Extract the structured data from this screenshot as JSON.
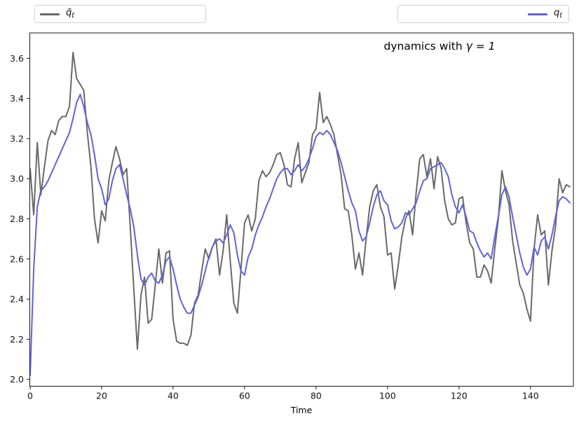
{
  "figure": {
    "title_prefix": "dynamics with",
    "title_math": "γ = 1"
  },
  "legend": {
    "left": {
      "label_base": "q̃",
      "label_sub": "t",
      "color": "#696969"
    },
    "right": {
      "label_base": "q",
      "label_sub": "t",
      "color": "#6161de"
    }
  },
  "axes": {
    "xlabel": "Time",
    "x_ticks": [
      0,
      20,
      40,
      60,
      80,
      100,
      120,
      140
    ],
    "y_ticks": [
      2.0,
      2.2,
      2.4,
      2.6,
      2.8,
      3.0,
      3.2,
      3.4,
      3.6
    ],
    "frame_color": "#1a1a1a",
    "tick_label_color": "#111111"
  },
  "chart_data": {
    "type": "line",
    "title": "dynamics with γ = 1",
    "xlabel": "Time",
    "ylabel": "",
    "x_start": 0,
    "x_step": 1,
    "xlim": [
      0,
      152
    ],
    "ylim": [
      1.965,
      3.727
    ],
    "grid": false,
    "legend_position": "two boxes above axes (upper-left and upper-right)",
    "series": [
      {
        "name": "q̃_t",
        "color": "#696969",
        "linewidth": 2,
        "values": [
          3.05,
          2.82,
          3.18,
          2.92,
          3.06,
          3.19,
          3.24,
          3.22,
          3.29,
          3.31,
          3.31,
          3.36,
          3.63,
          3.5,
          3.47,
          3.44,
          3.23,
          3.06,
          2.8,
          2.68,
          2.84,
          2.79,
          2.99,
          3.08,
          3.16,
          3.1,
          3.02,
          3.05,
          2.76,
          2.45,
          2.15,
          2.42,
          2.51,
          2.28,
          2.3,
          2.47,
          2.65,
          2.48,
          2.63,
          2.64,
          2.3,
          2.19,
          2.18,
          2.18,
          2.17,
          2.22,
          2.38,
          2.42,
          2.54,
          2.65,
          2.6,
          2.66,
          2.7,
          2.52,
          2.64,
          2.82,
          2.59,
          2.38,
          2.33,
          2.55,
          2.78,
          2.82,
          2.74,
          2.8,
          2.99,
          3.04,
          3.01,
          3.03,
          3.07,
          3.12,
          3.13,
          3.07,
          2.97,
          2.96,
          3.1,
          3.18,
          2.98,
          3.03,
          3.08,
          3.22,
          3.25,
          3.43,
          3.28,
          3.31,
          3.27,
          3.22,
          3.12,
          3.02,
          2.85,
          2.84,
          2.72,
          2.55,
          2.63,
          2.52,
          2.7,
          2.86,
          2.94,
          2.97,
          2.86,
          2.81,
          2.62,
          2.63,
          2.45,
          2.57,
          2.71,
          2.8,
          2.84,
          2.72,
          2.93,
          3.1,
          3.12,
          3.01,
          3.1,
          2.95,
          3.11,
          3.05,
          2.89,
          2.8,
          2.77,
          2.78,
          2.9,
          2.91,
          2.78,
          2.68,
          2.65,
          2.51,
          2.51,
          2.57,
          2.54,
          2.48,
          2.65,
          2.8,
          3.04,
          2.94,
          2.87,
          2.69,
          2.58,
          2.47,
          2.43,
          2.35,
          2.29,
          2.65,
          2.82,
          2.72,
          2.74,
          2.47,
          2.64,
          2.76,
          3.0,
          2.93,
          2.97,
          2.96
        ]
      },
      {
        "name": "q_t",
        "color": "#6161de",
        "linewidth": 2,
        "values": [
          2.02,
          2.55,
          2.86,
          2.94,
          2.96,
          2.99,
          3.03,
          3.07,
          3.11,
          3.15,
          3.19,
          3.23,
          3.3,
          3.38,
          3.42,
          3.36,
          3.28,
          3.22,
          3.12,
          3.0,
          2.95,
          2.87,
          2.9,
          2.99,
          3.05,
          3.07,
          3.0,
          2.92,
          2.85,
          2.76,
          2.62,
          2.5,
          2.47,
          2.51,
          2.53,
          2.49,
          2.48,
          2.52,
          2.59,
          2.61,
          2.55,
          2.47,
          2.4,
          2.36,
          2.33,
          2.33,
          2.37,
          2.41,
          2.47,
          2.54,
          2.61,
          2.66,
          2.69,
          2.7,
          2.68,
          2.72,
          2.77,
          2.73,
          2.62,
          2.54,
          2.52,
          2.61,
          2.65,
          2.72,
          2.77,
          2.81,
          2.86,
          2.9,
          2.95,
          3.0,
          3.03,
          3.05,
          3.05,
          3.02,
          3.04,
          3.07,
          3.04,
          3.06,
          3.1,
          3.15,
          3.21,
          3.23,
          3.22,
          3.24,
          3.22,
          3.18,
          3.14,
          3.08,
          3.01,
          2.94,
          2.88,
          2.84,
          2.74,
          2.69,
          2.71,
          2.78,
          2.86,
          2.92,
          2.94,
          2.89,
          2.87,
          2.79,
          2.75,
          2.76,
          2.78,
          2.83,
          2.82,
          2.85,
          2.88,
          2.94,
          2.99,
          3.0,
          3.05,
          3.06,
          3.07,
          3.08,
          3.05,
          3.01,
          2.92,
          2.86,
          2.83,
          2.87,
          2.81,
          2.74,
          2.73,
          2.68,
          2.64,
          2.61,
          2.63,
          2.6,
          2.71,
          2.81,
          2.92,
          2.96,
          2.91,
          2.81,
          2.72,
          2.63,
          2.56,
          2.52,
          2.55,
          2.66,
          2.62,
          2.69,
          2.71,
          2.65,
          2.72,
          2.81,
          2.89,
          2.91,
          2.9,
          2.88
        ]
      }
    ]
  }
}
